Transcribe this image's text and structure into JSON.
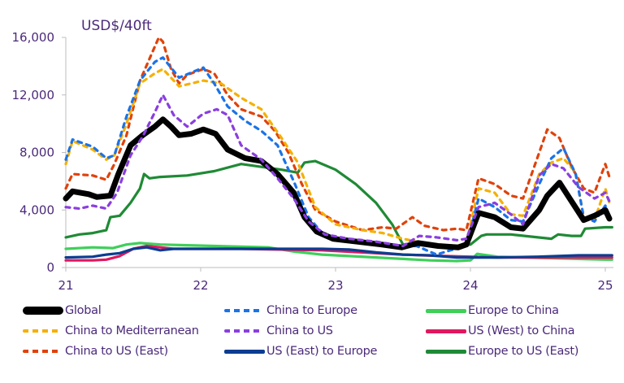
{
  "chart_data": {
    "type": "line",
    "title": "",
    "unit_label": "USD$/40ft",
    "xlabel": "",
    "ylabel": "USD$/40ft",
    "xlim": [
      21,
      25.05
    ],
    "ylim": [
      0,
      16000
    ],
    "x_ticks": [
      21,
      22,
      23,
      24,
      25
    ],
    "x_tick_labels": [
      "21",
      "22",
      "23",
      "24",
      "25"
    ],
    "y_ticks": [
      0,
      4000,
      8000,
      12000,
      16000
    ],
    "y_tick_labels": [
      "0",
      "4,000",
      "8,000",
      "12,000",
      "16,000"
    ],
    "grid": false,
    "legend_position": "bottom",
    "series": [
      {
        "name": "Global",
        "color": "#000000",
        "style": "solid",
        "weight": "heavy",
        "x": [
          21.0,
          21.05,
          21.17,
          21.23,
          21.33,
          21.39,
          21.48,
          21.57,
          21.66,
          21.72,
          21.78,
          21.84,
          21.93,
          22.02,
          22.11,
          22.2,
          22.33,
          22.45,
          22.57,
          22.69,
          22.77,
          22.86,
          22.98,
          23.16,
          23.34,
          23.49,
          23.61,
          23.76,
          23.91,
          23.97,
          24.06,
          24.18,
          24.3,
          24.39,
          24.51,
          24.57,
          24.66,
          24.75,
          24.84,
          24.92,
          25.0,
          25.03
        ],
        "y": [
          4800,
          5300,
          5100,
          4900,
          5000,
          6500,
          8500,
          9200,
          9800,
          10300,
          9800,
          9200,
          9300,
          9600,
          9300,
          8200,
          7600,
          7400,
          6500,
          5200,
          3500,
          2500,
          2000,
          1800,
          1600,
          1400,
          1700,
          1500,
          1400,
          1600,
          3800,
          3500,
          2800,
          2700,
          4000,
          5000,
          5900,
          4600,
          3300,
          3600,
          4000,
          3400
        ]
      },
      {
        "name": "China to Europe",
        "color": "#1a73e8",
        "style": "dashed",
        "weight": "normal",
        "x": [
          21.0,
          21.05,
          21.2,
          21.3,
          21.36,
          21.45,
          21.55,
          21.66,
          21.72,
          21.84,
          22.02,
          22.1,
          22.2,
          22.33,
          22.45,
          22.57,
          22.69,
          22.8,
          22.92,
          23.1,
          23.3,
          23.45,
          23.6,
          23.75,
          23.85,
          23.97,
          24.06,
          24.18,
          24.3,
          24.39,
          24.51,
          24.6,
          24.69,
          24.78,
          24.84,
          24.92,
          25.0,
          25.03
        ],
        "y": [
          7500,
          8900,
          8400,
          7600,
          7800,
          10500,
          13000,
          14300,
          14600,
          13200,
          13900,
          12800,
          11200,
          10200,
          9500,
          8500,
          6000,
          3500,
          2200,
          1800,
          1700,
          1500,
          1500,
          900,
          1200,
          1500,
          4800,
          4200,
          3300,
          3200,
          5800,
          7600,
          8300,
          6500,
          3500,
          3200,
          4300,
          3600
        ]
      },
      {
        "name": "Europe to China",
        "color": "#3fcf5a",
        "style": "solid",
        "weight": "normal",
        "x": [
          21.0,
          21.2,
          21.35,
          21.45,
          21.55,
          21.7,
          21.9,
          22.1,
          22.3,
          22.5,
          22.7,
          22.9,
          23.1,
          23.3,
          23.5,
          23.7,
          23.9,
          24.0,
          24.05,
          24.2,
          24.4,
          24.6,
          24.8,
          25.0,
          25.05
        ],
        "y": [
          1300,
          1400,
          1350,
          1600,
          1700,
          1600,
          1550,
          1500,
          1450,
          1400,
          1100,
          900,
          800,
          700,
          600,
          500,
          450,
          500,
          950,
          750,
          700,
          650,
          600,
          550,
          550
        ]
      },
      {
        "name": "China to Mediterranean",
        "color": "#f5b000",
        "style": "dashed",
        "weight": "normal",
        "x": [
          21.0,
          21.05,
          21.2,
          21.3,
          21.36,
          21.45,
          21.55,
          21.66,
          21.72,
          21.84,
          22.02,
          22.15,
          22.3,
          22.45,
          22.6,
          22.72,
          22.85,
          23.0,
          23.2,
          23.35,
          23.5,
          23.6,
          23.75,
          23.9,
          23.97,
          24.06,
          24.18,
          24.3,
          24.39,
          24.51,
          24.6,
          24.69,
          24.78,
          24.84,
          24.92,
          25.0,
          25.03
        ],
        "y": [
          7200,
          8800,
          8200,
          7500,
          7800,
          10000,
          12800,
          13500,
          13800,
          12600,
          13000,
          12800,
          11800,
          11000,
          9000,
          7300,
          4200,
          3000,
          2600,
          2400,
          2000,
          1800,
          1600,
          1500,
          1700,
          5500,
          5200,
          3700,
          3600,
          6500,
          7300,
          7600,
          6600,
          3500,
          3300,
          5500,
          4500
        ]
      },
      {
        "name": "China to US",
        "color": "#8a3ee0",
        "style": "dashed",
        "weight": "normal",
        "x": [
          21.0,
          21.1,
          21.2,
          21.3,
          21.38,
          21.48,
          21.57,
          21.66,
          21.72,
          21.8,
          21.9,
          22.02,
          22.12,
          22.2,
          22.3,
          22.45,
          22.57,
          22.69,
          22.8,
          22.92,
          23.1,
          23.3,
          23.5,
          23.62,
          23.75,
          23.9,
          23.97,
          24.06,
          24.18,
          24.3,
          24.39,
          24.51,
          24.6,
          24.69,
          24.8,
          24.92,
          25.0,
          25.03
        ],
        "y": [
          4200,
          4100,
          4300,
          4100,
          5200,
          7800,
          9100,
          10800,
          12000,
          10600,
          9800,
          10700,
          11000,
          10600,
          8500,
          7500,
          6200,
          4800,
          3200,
          2300,
          2000,
          1800,
          1500,
          2200,
          2100,
          1900,
          2000,
          4200,
          4500,
          3700,
          3000,
          6400,
          7200,
          6900,
          5600,
          4800,
          5200,
          4600
        ]
      },
      {
        "name": "US (West) to China",
        "color": "#e0185f",
        "style": "solid",
        "weight": "normal",
        "x": [
          21.0,
          21.2,
          21.3,
          21.4,
          21.5,
          21.6,
          21.7,
          21.8,
          22.0,
          22.3,
          22.6,
          22.9,
          23.2,
          23.5,
          23.8,
          24.0,
          24.2,
          24.5,
          24.8,
          25.0,
          25.05
        ],
        "y": [
          500,
          500,
          550,
          800,
          1300,
          1500,
          1400,
          1300,
          1300,
          1300,
          1250,
          1200,
          1050,
          900,
          800,
          750,
          700,
          700,
          700,
          700,
          700
        ]
      },
      {
        "name": "China to US (East)",
        "color": "#e0420a",
        "style": "dashed",
        "weight": "normal",
        "x": [
          21.0,
          21.05,
          21.2,
          21.3,
          21.36,
          21.45,
          21.55,
          21.62,
          21.69,
          21.72,
          21.78,
          21.84,
          21.9,
          22.02,
          22.1,
          22.2,
          22.3,
          22.45,
          22.55,
          22.65,
          22.75,
          22.85,
          23.0,
          23.2,
          23.35,
          23.45,
          23.57,
          23.66,
          23.8,
          23.9,
          23.97,
          24.06,
          24.18,
          24.3,
          24.39,
          24.51,
          24.57,
          24.66,
          24.75,
          24.84,
          24.92,
          25.0,
          25.03
        ],
        "y": [
          5500,
          6500,
          6400,
          6100,
          7200,
          9200,
          13000,
          14500,
          16000,
          15700,
          13800,
          12800,
          13400,
          13800,
          13500,
          12000,
          11000,
          10500,
          9500,
          8000,
          5800,
          4000,
          3200,
          2600,
          2800,
          2700,
          3500,
          2900,
          2600,
          2700,
          2600,
          6200,
          5800,
          5000,
          4800,
          8000,
          9600,
          9000,
          7000,
          5500,
          5200,
          7200,
          6300
        ]
      },
      {
        "name": "US (East) to Europe",
        "color": "#0b3d91",
        "style": "solid",
        "weight": "normal",
        "x": [
          21.0,
          21.2,
          21.3,
          21.4,
          21.5,
          21.6,
          21.7,
          21.8,
          22.0,
          22.3,
          22.6,
          22.9,
          23.1,
          23.3,
          23.5,
          23.7,
          23.9,
          24.0,
          24.2,
          24.5,
          24.8,
          25.0,
          25.05
        ],
        "y": [
          700,
          750,
          900,
          1000,
          1300,
          1400,
          1200,
          1300,
          1300,
          1300,
          1300,
          1300,
          1250,
          1050,
          900,
          850,
          700,
          700,
          700,
          750,
          850,
          850,
          850
        ]
      },
      {
        "name": "Europe to US (East)",
        "color": "#1f8a35",
        "style": "solid",
        "weight": "normal",
        "x": [
          21.0,
          21.1,
          21.2,
          21.3,
          21.33,
          21.4,
          21.48,
          21.55,
          21.58,
          21.62,
          21.7,
          21.9,
          22.1,
          22.3,
          22.45,
          22.6,
          22.72,
          22.77,
          22.85,
          23.0,
          23.15,
          23.3,
          23.42,
          23.5,
          23.55,
          23.7,
          23.9,
          24.0,
          24.08,
          24.12,
          24.3,
          24.5,
          24.6,
          24.65,
          24.75,
          24.82,
          24.85,
          25.0,
          25.05
        ],
        "y": [
          2100,
          2300,
          2400,
          2600,
          3500,
          3600,
          4500,
          5500,
          6500,
          6200,
          6300,
          6400,
          6700,
          7200,
          7000,
          6800,
          6600,
          7300,
          7400,
          6800,
          5800,
          4500,
          3000,
          1600,
          1600,
          1600,
          1500,
          1600,
          2200,
          2300,
          2300,
          2100,
          2000,
          2300,
          2200,
          2200,
          2700,
          2800,
          2800
        ]
      }
    ]
  }
}
